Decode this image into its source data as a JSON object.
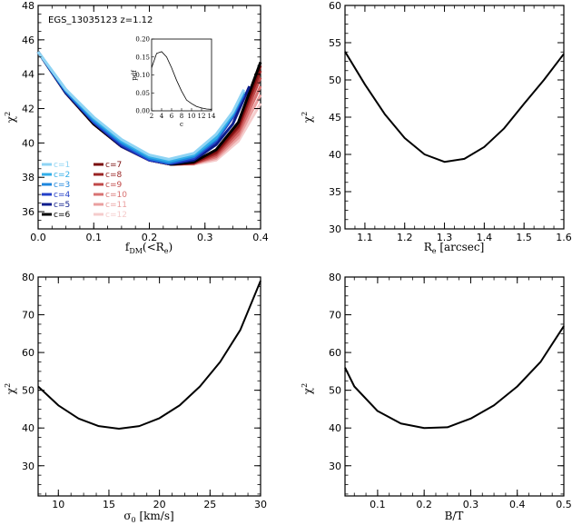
{
  "chart_data": [
    {
      "type": "line",
      "id": "fdm",
      "annotation": "EGS_13035123  z=1.12",
      "xlabel": "f_DM(<R_e)",
      "ylabel": "χ²",
      "xlim": [
        0.0,
        0.4
      ],
      "ylim": [
        35,
        48
      ],
      "xticks": [
        "0.0",
        "0.1",
        "0.2",
        "0.3",
        "0.4"
      ],
      "yticks": [
        "36",
        "38",
        "40",
        "42",
        "44",
        "46",
        "48"
      ],
      "legend_title": "",
      "series": [
        {
          "name": "c=1",
          "color": "#8fd4f4",
          "x": [
            0.0,
            0.05,
            0.1,
            0.15,
            0.2,
            0.235,
            0.28,
            0.32,
            0.35,
            0.37
          ],
          "y": [
            45.3,
            43.1,
            41.5,
            40.2,
            39.3,
            39.05,
            39.4,
            40.5,
            41.8,
            43.1
          ]
        },
        {
          "name": "c=2",
          "color": "#32aee8",
          "x": [
            0.0,
            0.05,
            0.1,
            0.15,
            0.2,
            0.235,
            0.28,
            0.32,
            0.35,
            0.37
          ],
          "y": [
            45.3,
            43.1,
            41.4,
            40.1,
            39.2,
            38.95,
            39.3,
            40.3,
            41.7,
            43.0
          ]
        },
        {
          "name": "c=3",
          "color": "#1d86dd",
          "x": [
            0.0,
            0.05,
            0.1,
            0.15,
            0.2,
            0.235,
            0.28,
            0.32,
            0.35,
            0.37
          ],
          "y": [
            45.3,
            43.0,
            41.3,
            40.0,
            39.1,
            38.85,
            39.2,
            40.2,
            41.6,
            42.9
          ]
        },
        {
          "name": "c=4",
          "color": "#2340c8",
          "x": [
            0.0,
            0.05,
            0.1,
            0.15,
            0.2,
            0.235,
            0.28,
            0.32,
            0.35,
            0.37
          ],
          "y": [
            45.3,
            43.0,
            41.2,
            39.9,
            39.0,
            38.8,
            39.1,
            40.1,
            41.5,
            42.8
          ]
        },
        {
          "name": "c=5",
          "color": "#0c1c8c",
          "x": [
            0.0,
            0.05,
            0.1,
            0.15,
            0.2,
            0.24,
            0.28,
            0.32,
            0.35,
            0.38
          ],
          "y": [
            45.3,
            42.9,
            41.2,
            39.8,
            39.0,
            38.8,
            39.0,
            39.9,
            41.1,
            43.3
          ]
        },
        {
          "name": "c=6",
          "color": "#000000",
          "x": [
            0.0,
            0.05,
            0.1,
            0.15,
            0.2,
            0.24,
            0.28,
            0.32,
            0.36,
            0.4
          ],
          "y": [
            45.3,
            42.9,
            41.1,
            39.8,
            39.0,
            38.75,
            38.9,
            39.6,
            41.2,
            44.7
          ]
        },
        {
          "name": "c=7",
          "color": "#7a0c0c",
          "x": [
            0.0,
            0.05,
            0.1,
            0.15,
            0.2,
            0.24,
            0.28,
            0.32,
            0.36,
            0.4
          ],
          "y": [
            45.3,
            42.9,
            41.1,
            39.8,
            39.0,
            38.75,
            38.85,
            39.5,
            41.0,
            44.5
          ]
        },
        {
          "name": "c=8",
          "color": "#9a2424",
          "x": [
            0.0,
            0.05,
            0.1,
            0.15,
            0.2,
            0.24,
            0.28,
            0.32,
            0.36,
            0.4
          ],
          "y": [
            45.3,
            42.9,
            41.1,
            39.8,
            39.0,
            38.75,
            38.85,
            39.4,
            40.9,
            44.2
          ]
        },
        {
          "name": "c=9",
          "color": "#c04848",
          "x": [
            0.0,
            0.05,
            0.1,
            0.15,
            0.2,
            0.24,
            0.28,
            0.32,
            0.36,
            0.4
          ],
          "y": [
            45.3,
            42.9,
            41.1,
            39.8,
            39.0,
            38.75,
            38.8,
            39.3,
            40.7,
            43.8
          ]
        },
        {
          "name": "c=10",
          "color": "#d87272",
          "x": [
            0.0,
            0.05,
            0.1,
            0.15,
            0.2,
            0.24,
            0.28,
            0.32,
            0.36,
            0.4
          ],
          "y": [
            45.3,
            42.9,
            41.1,
            39.8,
            39.0,
            38.75,
            38.8,
            39.2,
            40.5,
            43.3
          ]
        },
        {
          "name": "c=11",
          "color": "#eaa0a0",
          "x": [
            0.0,
            0.05,
            0.1,
            0.15,
            0.2,
            0.24,
            0.28,
            0.32,
            0.36,
            0.4
          ],
          "y": [
            45.3,
            42.9,
            41.1,
            39.8,
            39.0,
            38.75,
            38.8,
            39.1,
            40.3,
            42.8
          ]
        },
        {
          "name": "c=12",
          "color": "#f5cccc",
          "x": [
            0.0,
            0.05,
            0.1,
            0.15,
            0.2,
            0.24,
            0.28,
            0.32,
            0.36,
            0.4
          ],
          "y": [
            45.3,
            42.9,
            41.1,
            39.8,
            39.0,
            38.75,
            38.75,
            39.0,
            40.1,
            42.3
          ]
        }
      ],
      "inset": {
        "xlabel": "c",
        "ylabel": "pdf",
        "xlim": [
          2,
          14
        ],
        "ylim": [
          0.0,
          0.2
        ],
        "xticks": [
          "2",
          "4",
          "6",
          "8",
          "10",
          "12",
          "14"
        ],
        "yticks": [
          "0.00",
          "0.05",
          "0.10",
          "0.15",
          "0.20"
        ],
        "x": [
          2,
          3,
          4,
          5,
          6,
          7,
          8,
          9,
          10,
          11,
          12,
          13,
          14
        ],
        "y": [
          0.12,
          0.16,
          0.165,
          0.15,
          0.12,
          0.085,
          0.055,
          0.03,
          0.02,
          0.012,
          0.008,
          0.005,
          0.004
        ]
      }
    },
    {
      "type": "line",
      "id": "re",
      "xlabel": "R_e [arcsec]",
      "ylabel": "χ²",
      "xlim": [
        1.05,
        1.6
      ],
      "ylim": [
        30,
        60
      ],
      "xticks": [
        "1.1",
        "1.2",
        "1.3",
        "1.4",
        "1.5",
        "1.6"
      ],
      "yticks": [
        "30",
        "35",
        "40",
        "45",
        "50",
        "55",
        "60"
      ],
      "series": [
        {
          "name": "chi2",
          "color": "#000000",
          "x": [
            1.05,
            1.1,
            1.15,
            1.2,
            1.25,
            1.3,
            1.35,
            1.4,
            1.45,
            1.5,
            1.55,
            1.6
          ],
          "y": [
            53.8,
            49.4,
            45.4,
            42.2,
            40.0,
            39.0,
            39.4,
            41.0,
            43.5,
            46.8,
            50.0,
            53.5
          ]
        }
      ]
    },
    {
      "type": "line",
      "id": "sigma",
      "xlabel": "σ₀ [km/s]",
      "ylabel": "χ²",
      "xlim": [
        8,
        30
      ],
      "ylim": [
        22,
        80
      ],
      "xticks": [
        "10",
        "15",
        "20",
        "25",
        "30"
      ],
      "yticks": [
        "30",
        "40",
        "50",
        "60",
        "70",
        "80"
      ],
      "series": [
        {
          "name": "chi2",
          "color": "#000000",
          "x": [
            8,
            10,
            12,
            14,
            16,
            18,
            20,
            22,
            24,
            26,
            28,
            30
          ],
          "y": [
            51,
            46,
            42.5,
            40.5,
            39.8,
            40.5,
            42.6,
            46,
            51,
            57.5,
            66,
            79
          ]
        }
      ]
    },
    {
      "type": "line",
      "id": "bt",
      "xlabel": "B/T",
      "ylabel": "χ²",
      "xlim": [
        0.03,
        0.5
      ],
      "ylim": [
        22,
        80
      ],
      "xticks": [
        "0.1",
        "0.2",
        "0.3",
        "0.4",
        "0.5"
      ],
      "yticks": [
        "30",
        "40",
        "50",
        "60",
        "70",
        "80"
      ],
      "series": [
        {
          "name": "chi2",
          "color": "#000000",
          "x": [
            0.03,
            0.05,
            0.1,
            0.15,
            0.2,
            0.25,
            0.3,
            0.35,
            0.4,
            0.45,
            0.5
          ],
          "y": [
            56,
            51,
            44.5,
            41.2,
            40.0,
            40.2,
            42.5,
            46,
            51,
            57.5,
            67
          ]
        }
      ]
    }
  ]
}
